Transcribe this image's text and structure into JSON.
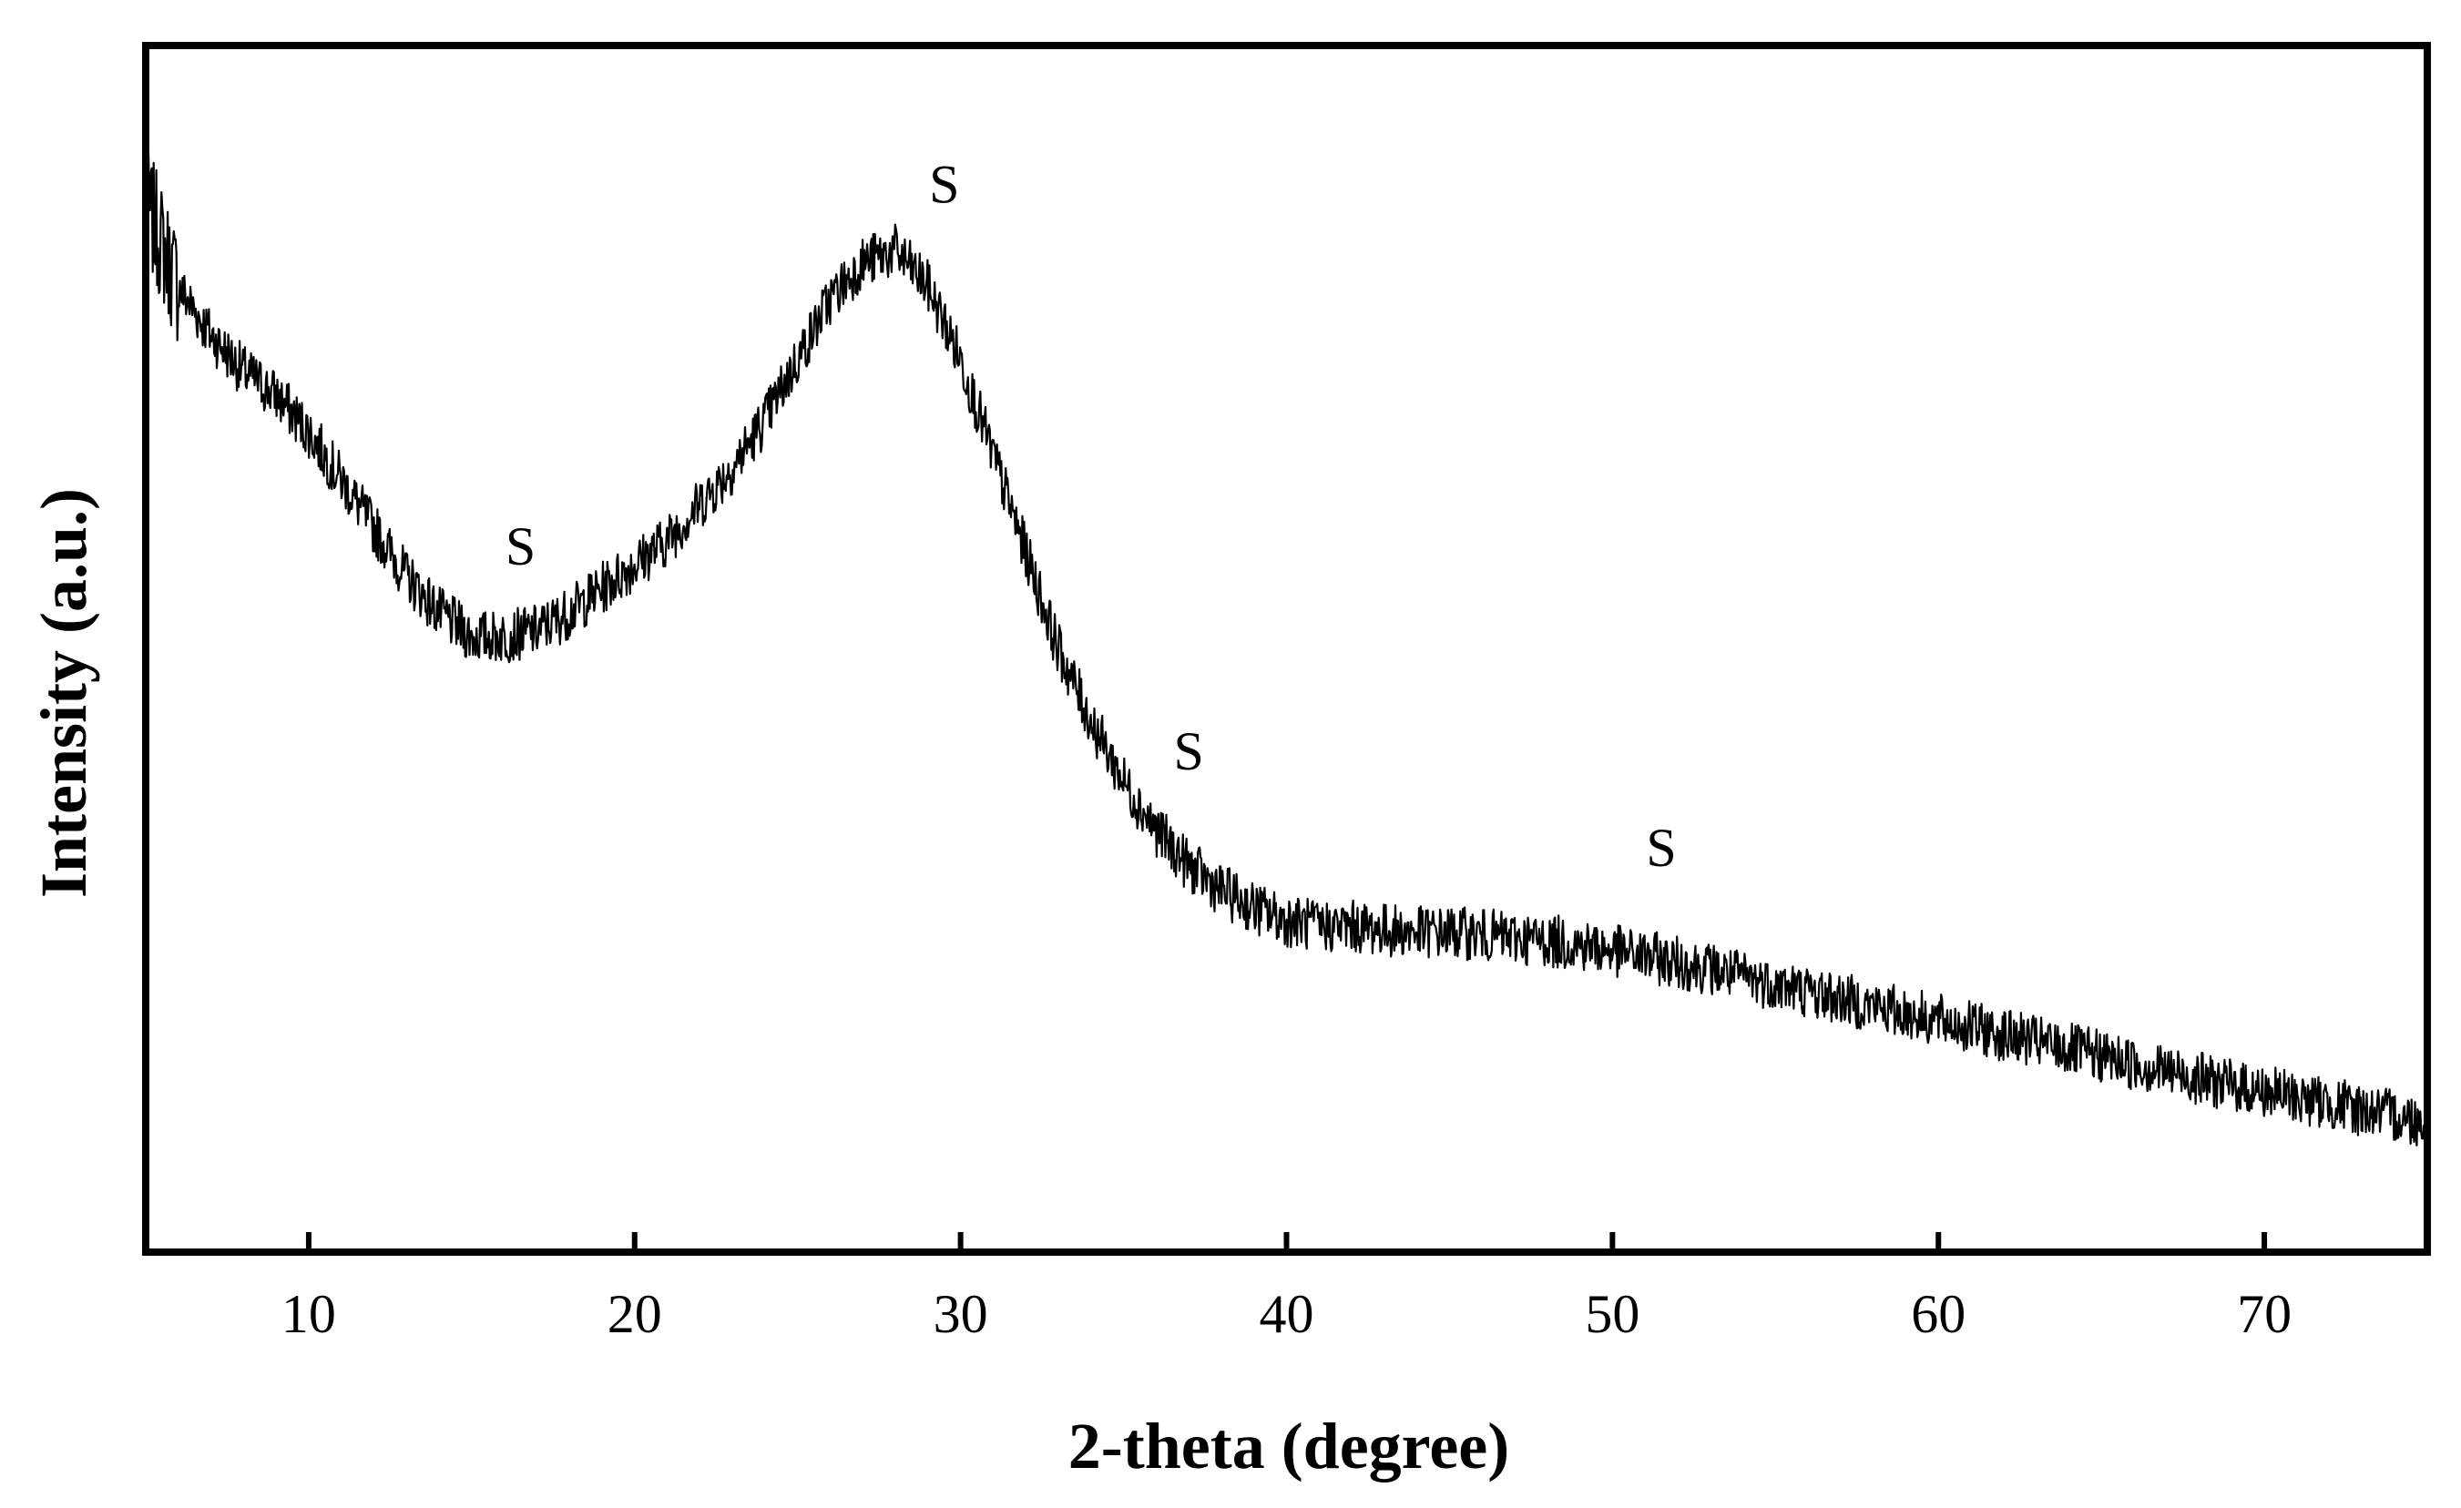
{
  "chart_data": {
    "type": "line",
    "title": "",
    "xlabel": "2-theta (degree)",
    "ylabel": "Intensity (a.u.)",
    "xlim": [
      5,
      75
    ],
    "ylim": [
      0,
      100
    ],
    "xticks": [
      10,
      20,
      30,
      40,
      50,
      60,
      70
    ],
    "yticks": [],
    "grid": false,
    "legend": "none",
    "line_color": "#000000",
    "series": [
      {
        "x": [
          5,
          6,
          7,
          8,
          9,
          10,
          11,
          12,
          13,
          14,
          15,
          16,
          17,
          18,
          19,
          20,
          21,
          22,
          23,
          24,
          25,
          26,
          27,
          28,
          29,
          30,
          31,
          32,
          33,
          34,
          35,
          36,
          37,
          38,
          39,
          40,
          41,
          42,
          43,
          44,
          45,
          46,
          47,
          48,
          49,
          50,
          51,
          52,
          53,
          54,
          55,
          56,
          57,
          58,
          59,
          60,
          61,
          62,
          63,
          64,
          65,
          66,
          67,
          68,
          69,
          70,
          71,
          72,
          73,
          74,
          75
        ],
        "y": [
          87,
          80,
          76,
          73,
          71,
          68,
          64,
          60,
          56,
          53,
          51,
          51,
          51.5,
          53,
          55,
          57,
          59,
          62,
          65,
          69,
          74,
          79,
          82,
          83,
          80,
          74,
          66,
          58,
          50,
          44,
          39,
          35,
          32,
          30,
          28.5,
          27.5,
          27,
          27,
          26.7,
          26.5,
          26.5,
          26.3,
          26,
          25.8,
          25.5,
          25,
          24.5,
          24,
          23.5,
          22.8,
          22.2,
          21.6,
          21,
          20.4,
          19.8,
          19.2,
          18.6,
          18,
          17.4,
          16.8,
          16.2,
          15.6,
          15,
          14.4,
          13.8,
          13.3,
          12.8,
          12.3,
          11.8,
          11.3,
          10.8
        ]
      }
    ],
    "annotations": [
      {
        "text": "S",
        "x": 16.5,
        "y": 57
      },
      {
        "text": "S",
        "x": 29.5,
        "y": 87
      },
      {
        "text": "S",
        "x": 37.0,
        "y": 40
      },
      {
        "text": "S",
        "x": 51.5,
        "y": 32
      }
    ]
  }
}
